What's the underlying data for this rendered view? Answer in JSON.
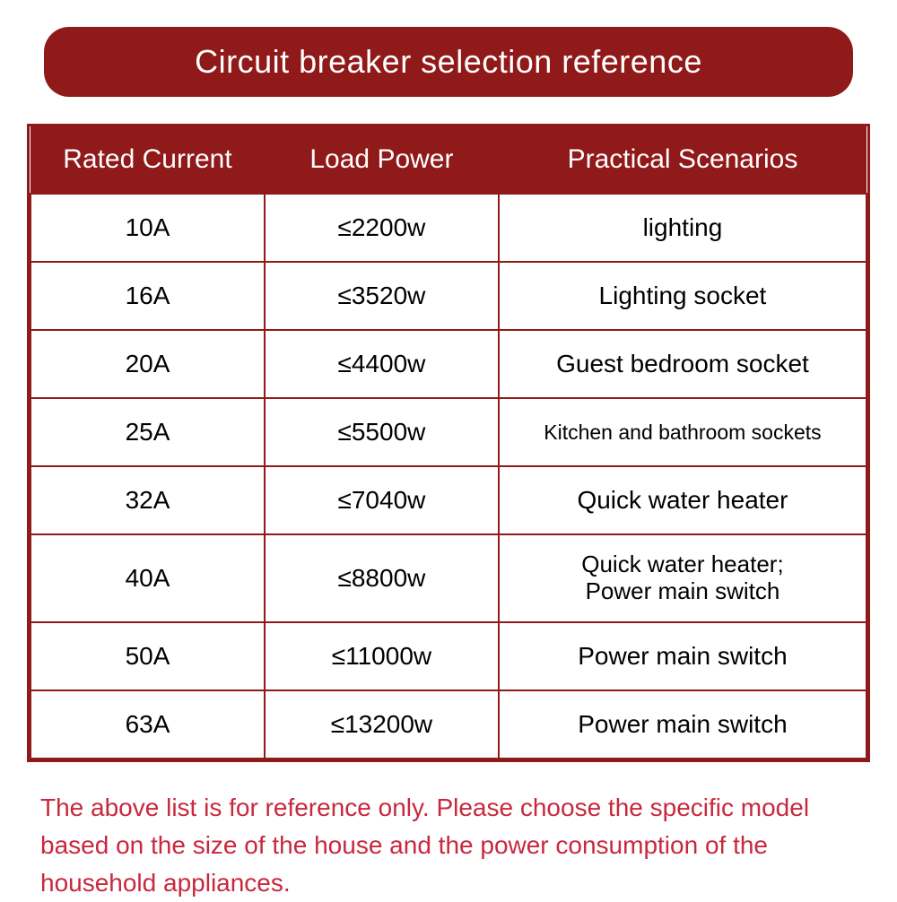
{
  "title": "Circuit breaker selection reference",
  "table": {
    "columns": [
      "Rated Current",
      "Load Power",
      "Practical Scenarios"
    ],
    "rows": [
      {
        "current": "10A",
        "power": "≤2200w",
        "scenario": "lighting"
      },
      {
        "current": "16A",
        "power": "≤3520w",
        "scenario": "Lighting socket"
      },
      {
        "current": "20A",
        "power": "≤4400w",
        "scenario": "Guest bedroom socket"
      },
      {
        "current": "25A",
        "power": "≤5500w",
        "scenario": "Kitchen and bathroom sockets",
        "small": true
      },
      {
        "current": "32A",
        "power": "≤7040w",
        "scenario": "Quick water heater"
      },
      {
        "current": "40A",
        "power": "≤8800w",
        "scenario": "Quick water heater;\nPower main switch",
        "multi": true
      },
      {
        "current": "50A",
        "power": "≤11000w",
        "scenario": "Power main switch"
      },
      {
        "current": "63A",
        "power": "≤13200w",
        "scenario": "Power main switch"
      }
    ]
  },
  "footer": "The above list is for reference only. Please choose the specific model based on the size of the house and the power consumption of the household appliances.",
  "colors": {
    "primary": "#901919",
    "footerText": "#c9283d",
    "background": "#ffffff",
    "cellText": "#000000"
  },
  "fontSizes": {
    "title": 36,
    "header": 30,
    "cell": 28,
    "cellSmall": 23,
    "footer": 28
  }
}
